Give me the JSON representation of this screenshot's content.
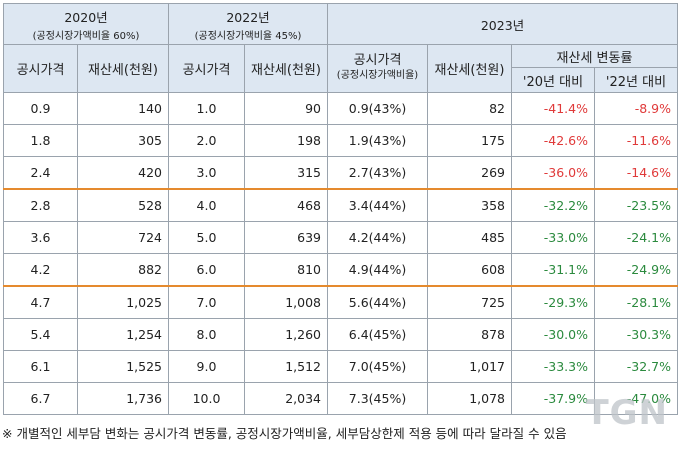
{
  "header": {
    "y2020": "2020년",
    "y2020_sub": "(공정시장가액비율 60%)",
    "y2022": "2022년",
    "y2022_sub": "(공정시장가액비율 45%)",
    "y2023": "2023년",
    "price": "공시가격",
    "tax": "재산세(천원)",
    "price_2023": "공시가격",
    "price_2023_sub": "(공정시장가액비율)",
    "change": "재산세 변동률",
    "vs20": "'20년 대비",
    "vs22": "'22년 대비"
  },
  "rows": [
    {
      "p20": "0.9",
      "t20": "140",
      "p22": "1.0",
      "t22": "90",
      "p23": "0.9(43%)",
      "t23": "82",
      "c20": "-41.4%",
      "c22": "-8.9%"
    },
    {
      "p20": "1.8",
      "t20": "305",
      "p22": "2.0",
      "t22": "198",
      "p23": "1.9(43%)",
      "t23": "175",
      "c20": "-42.6%",
      "c22": "-11.6%"
    },
    {
      "p20": "2.4",
      "t20": "420",
      "p22": "3.0",
      "t22": "315",
      "p23": "2.7(43%)",
      "t23": "269",
      "c20": "-36.0%",
      "c22": "-14.6%"
    },
    {
      "p20": "2.8",
      "t20": "528",
      "p22": "4.0",
      "t22": "468",
      "p23": "3.4(44%)",
      "t23": "358",
      "c20": "-32.2%",
      "c22": "-23.5%"
    },
    {
      "p20": "3.6",
      "t20": "724",
      "p22": "5.0",
      "t22": "639",
      "p23": "4.2(44%)",
      "t23": "485",
      "c20": "-33.0%",
      "c22": "-24.1%"
    },
    {
      "p20": "4.2",
      "t20": "882",
      "p22": "6.0",
      "t22": "810",
      "p23": "4.9(44%)",
      "t23": "608",
      "c20": "-31.1%",
      "c22": "-24.9%"
    },
    {
      "p20": "4.7",
      "t20": "1,025",
      "p22": "7.0",
      "t22": "1,008",
      "p23": "5.6(44%)",
      "t23": "725",
      "c20": "-29.3%",
      "c22": "-28.1%"
    },
    {
      "p20": "5.4",
      "t20": "1,254",
      "p22": "8.0",
      "t22": "1,260",
      "p23": "6.4(45%)",
      "t23": "878",
      "c20": "-30.0%",
      "c22": "-30.3%"
    },
    {
      "p20": "6.1",
      "t20": "1,525",
      "p22": "9.0",
      "t22": "1,512",
      "p23": "7.0(45%)",
      "t23": "1,017",
      "c20": "-33.3%",
      "c22": "-32.7%"
    },
    {
      "p20": "6.7",
      "t20": "1,736",
      "p22": "10.0",
      "t22": "2,034",
      "p23": "7.3(45%)",
      "t23": "1,078",
      "c20": "-37.9%",
      "c22": "-47.0%"
    }
  ],
  "note": "※ 개별적인 세부담 변화는 공시가격 변동률, 공정시장가액비율, 세부담상한제 적용 등에 따라 달라질 수 있음",
  "watermark": "TGN",
  "colors": {
    "header_bg": "#dde7f2",
    "negative_red": "#e03a3a",
    "negative_green": "#2b8a3e",
    "group_separator": "#e58a2e"
  }
}
